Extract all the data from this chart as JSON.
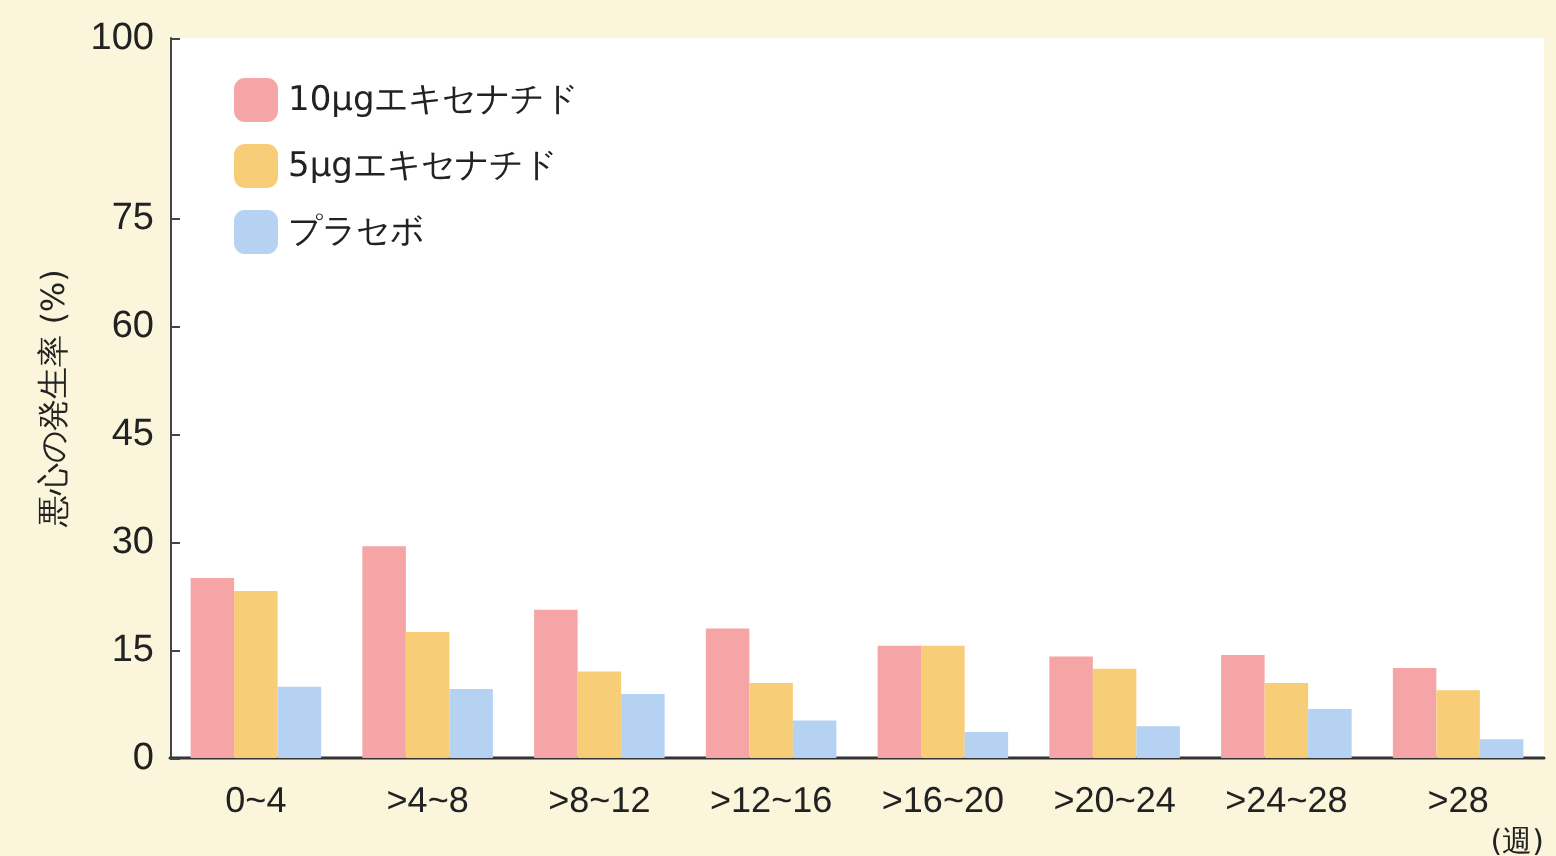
{
  "chart_data": {
    "type": "bar",
    "ylabel": "悪心の発生率 (%)",
    "xlabel": "(週)",
    "categories": [
      "0~4",
      ">4~8",
      ">8~12",
      ">12~16",
      ">16~20",
      ">20~24",
      ">24~28",
      ">28"
    ],
    "series": [
      {
        "name": "10μgエキセナチド",
        "color": "#f5a5a5",
        "values": [
          25,
          29.4,
          20.6,
          18,
          15.6,
          14.1,
          14.3,
          12.5
        ]
      },
      {
        "name": "5μgエキセナチド",
        "color": "#f8cd78",
        "values": [
          23.2,
          17.5,
          12,
          10.4,
          15.6,
          12.4,
          10.4,
          9.4
        ]
      },
      {
        "name": "プラセボ",
        "color": "#b5d2f3",
        "values": [
          9.9,
          9.6,
          8.9,
          5.2,
          3.6,
          4.4,
          6.8,
          2.6
        ]
      }
    ],
    "ylim": [
      0,
      100
    ],
    "yticks": [
      0,
      15,
      30,
      45,
      60,
      75,
      100
    ],
    "grid": false,
    "legend": "top left"
  }
}
